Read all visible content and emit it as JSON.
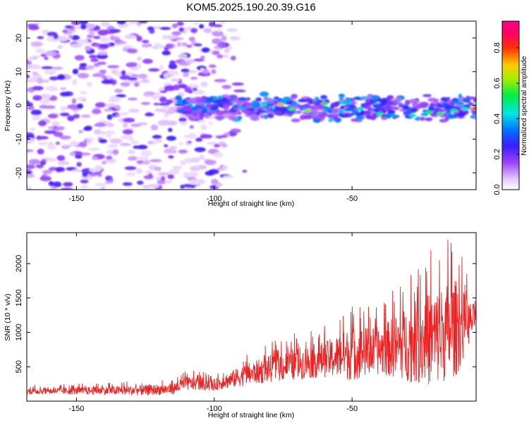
{
  "figure": {
    "title": "KOM5.2025.190.20.39.G16"
  },
  "chart_data": [
    {
      "type": "heatmap",
      "xlabel": "Height of straight line (km)",
      "ylabel": "Frequency (Hz)",
      "xlim": [
        -168,
        -5
      ],
      "ylim": [
        -25,
        25
      ],
      "xticks": [
        -150,
        -100,
        -50
      ],
      "yticks": [
        -20,
        -10,
        0,
        10,
        20
      ],
      "colorbar": {
        "label": "Normalized spectral amplitude",
        "range": [
          0,
          0.95
        ],
        "ticks": [
          "0.0",
          "0.2",
          "0.4",
          "0.6",
          "0.8"
        ],
        "colormap": "rainbow (white-violet-blue-cyan-green-yellow-red-magenta)"
      },
      "noise_region_x": [
        -168,
        -88
      ],
      "signal_band": {
        "center_hz": 0,
        "half_width_hz": 3,
        "x_range": [
          -113,
          -5
        ],
        "peak_x": -5,
        "peak_amplitude": 0.9
      }
    },
    {
      "type": "line",
      "xlabel": "Height of straight line (km)",
      "ylabel": "SNR (10 * v/v)",
      "xlim": [
        -168,
        -5
      ],
      "ylim": [
        0,
        2450
      ],
      "xticks": [
        -150,
        -100,
        -50
      ],
      "yticks": [
        500,
        1000,
        1500,
        2000
      ],
      "color": "#ee2222",
      "envelope": {
        "x": [
          -168,
          -150,
          -125,
          -115,
          -110,
          -100,
          -90,
          -80,
          -70,
          -60,
          -50,
          -40,
          -30,
          -20,
          -12,
          -8,
          -5
        ],
        "mean": [
          140,
          145,
          150,
          170,
          250,
          230,
          350,
          450,
          520,
          580,
          650,
          700,
          780,
          850,
          1000,
          1100,
          1200
        ],
        "max": [
          230,
          250,
          300,
          330,
          450,
          400,
          650,
          850,
          1000,
          1100,
          1450,
          1400,
          1900,
          2300,
          2450,
          1800,
          1550
        ]
      }
    }
  ]
}
